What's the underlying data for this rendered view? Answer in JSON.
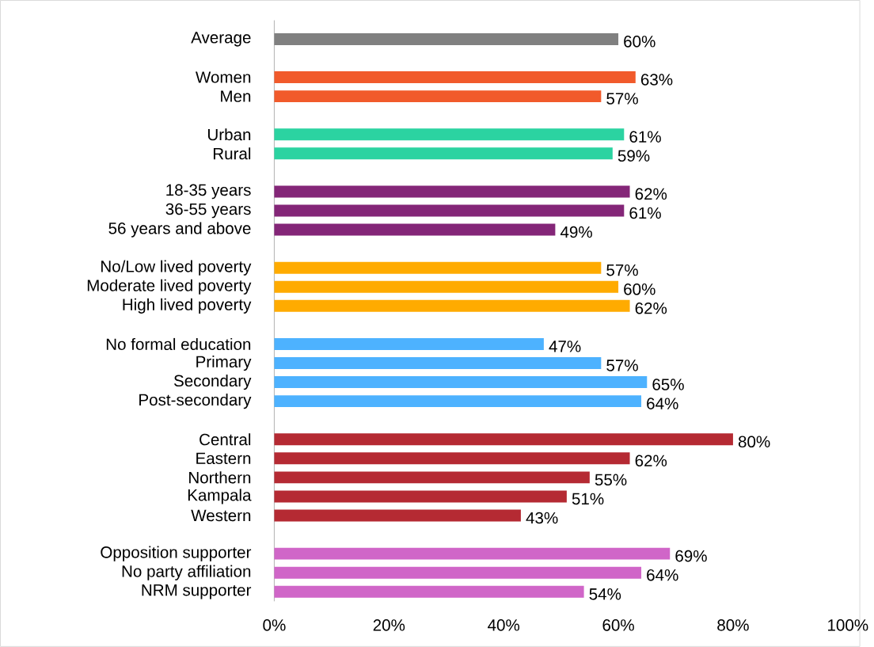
{
  "chart_data": {
    "type": "bar",
    "orientation": "horizontal",
    "categories": [
      "Average",
      null,
      "Women",
      "Men",
      null,
      "Urban",
      "Rural",
      null,
      "18-35 years",
      "36-55 years",
      "56 years and above",
      null,
      "No/Low lived poverty",
      "Moderate lived poverty",
      "High lived poverty",
      null,
      "No formal education",
      "Primary",
      "Secondary",
      "Post-secondary",
      null,
      "Central",
      "Eastern",
      "Northern",
      "Kampala",
      "Western",
      null,
      "Opposition supporter",
      "No party affiliation",
      "NRM supporter"
    ],
    "values": [
      60,
      null,
      63,
      57,
      null,
      61,
      59,
      null,
      62,
      61,
      49,
      null,
      57,
      60,
      62,
      null,
      47,
      57,
      65,
      64,
      null,
      80,
      62,
      55,
      51,
      43,
      null,
      69,
      64,
      54
    ],
    "value_labels": [
      "60%",
      null,
      "63%",
      "57%",
      null,
      "61%",
      "59%",
      null,
      "62%",
      "61%",
      "49%",
      null,
      "57%",
      "60%",
      "62%",
      null,
      "47%",
      "57%",
      "65%",
      "64%",
      null,
      "80%",
      "62%",
      "55%",
      "51%",
      "43%",
      null,
      "69%",
      "64%",
      "54%"
    ],
    "colors": [
      "#808080",
      null,
      "#f15a2b",
      "#f15a2b",
      null,
      "#2bd3a1",
      "#2bd3a1",
      null,
      "#842678",
      "#842678",
      "#842678",
      null,
      "#ffab00",
      "#ffab00",
      "#ffab00",
      null,
      "#4db2ff",
      "#4db2ff",
      "#4db2ff",
      "#4db2ff",
      null,
      "#b52a33",
      "#b52a33",
      "#b52a33",
      "#b52a33",
      "#b52a33",
      null,
      "#d066c8",
      "#d066c8",
      "#d066c8"
    ],
    "xlim": [
      0,
      100
    ],
    "xticks": [
      {
        "value": 0,
        "label": "0%"
      },
      {
        "value": 20,
        "label": "20%"
      },
      {
        "value": 40,
        "label": "40%"
      },
      {
        "value": 60,
        "label": "60%"
      },
      {
        "value": 80,
        "label": "80%"
      },
      {
        "value": 100,
        "label": "100%"
      }
    ]
  }
}
